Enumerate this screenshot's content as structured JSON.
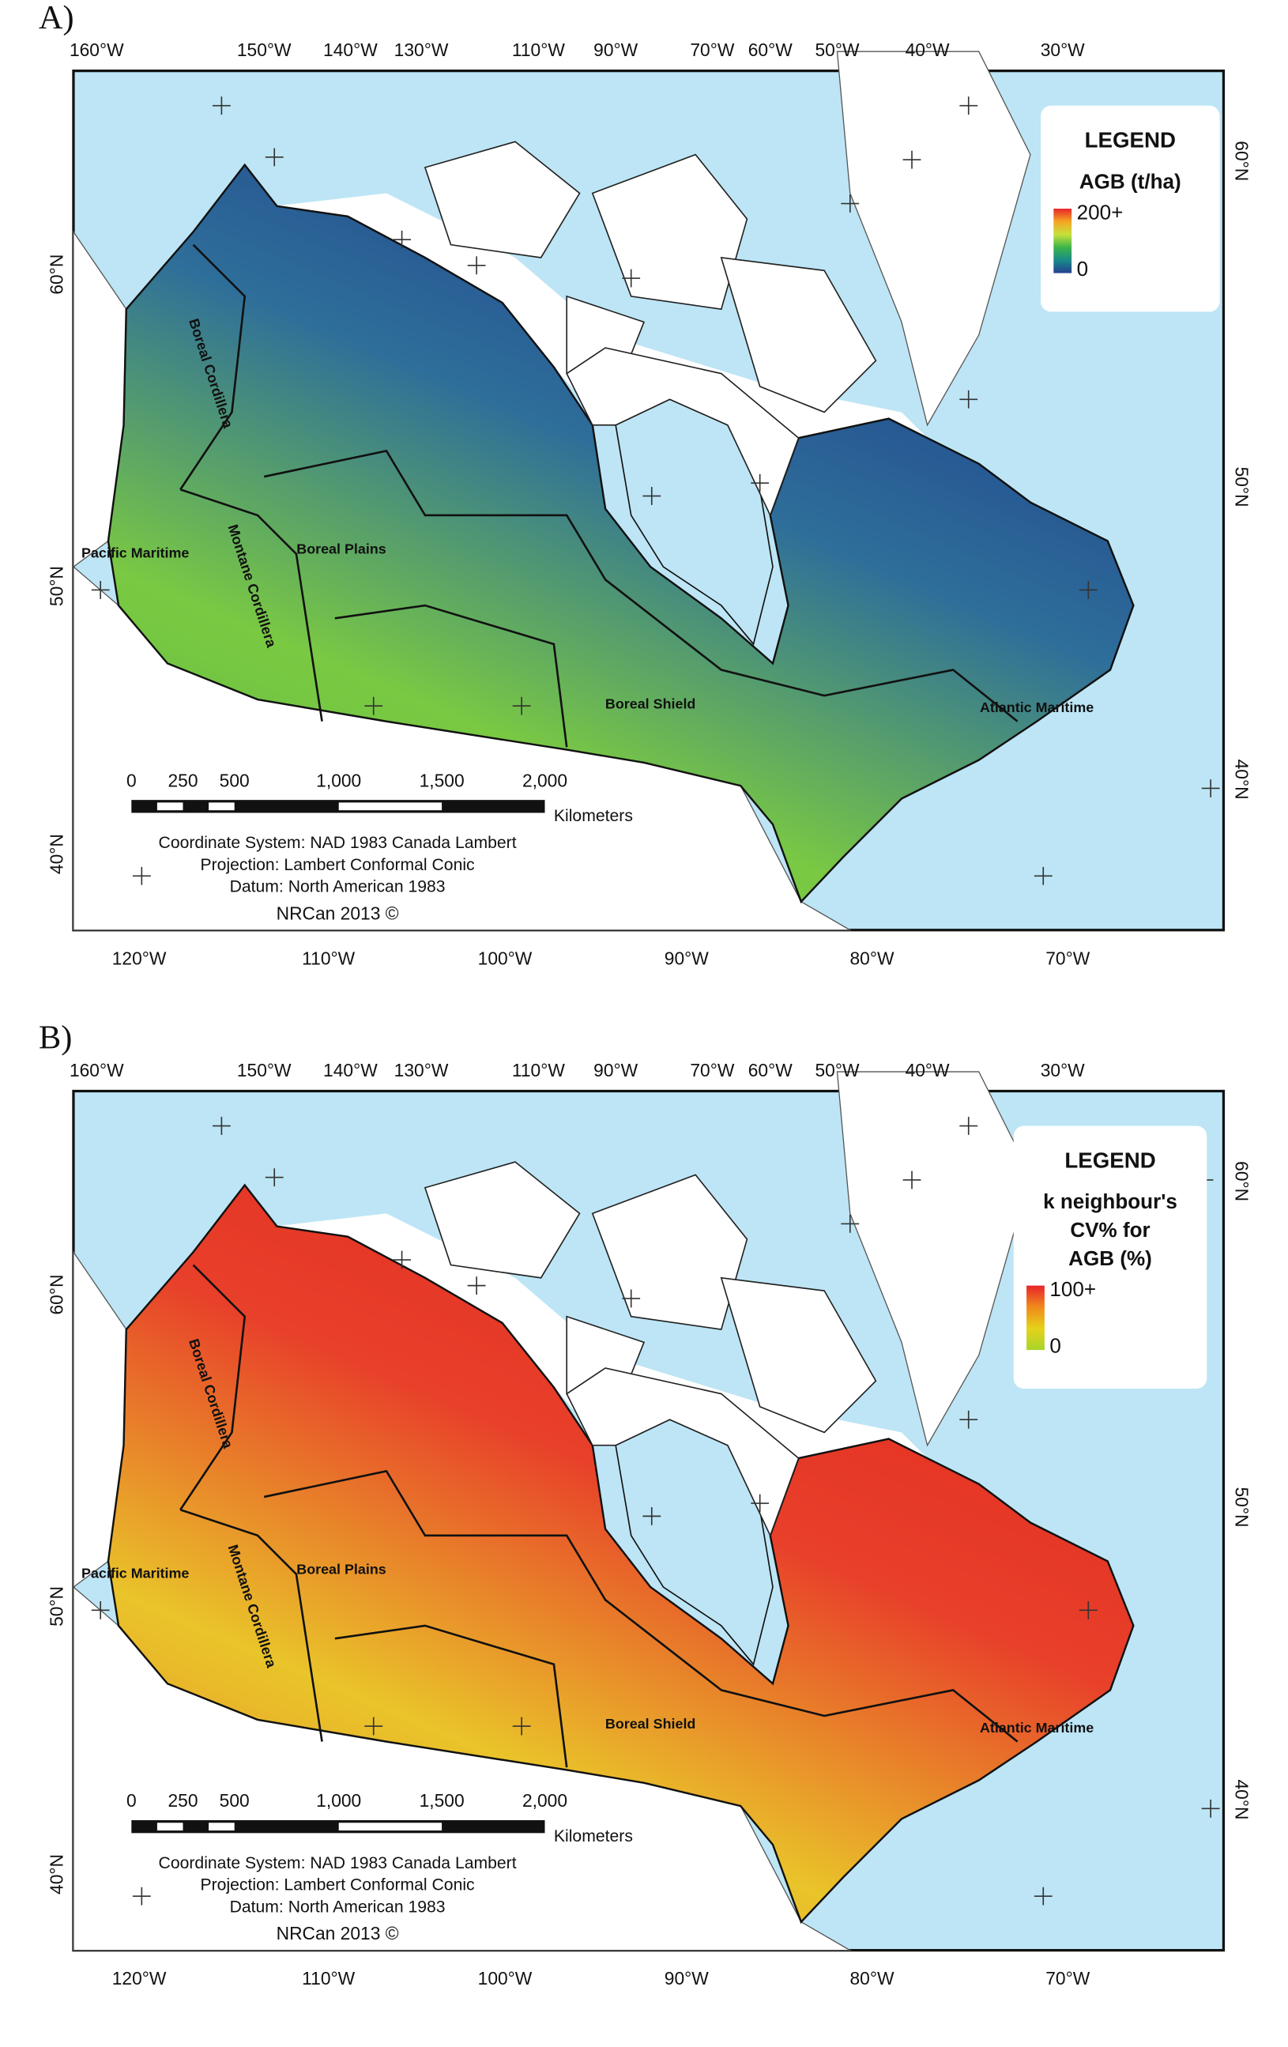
{
  "panels": [
    {
      "label": "A)",
      "top_longitudes": [
        "160°W",
        "150°W",
        "140°W",
        "130°W",
        "110°W",
        "90°W",
        "70°W",
        "60°W",
        "50°W",
        "40°W",
        "30°W"
      ],
      "bottom_longitudes": [
        "120°W",
        "110°W",
        "100°W",
        "90°W",
        "80°W",
        "70°W"
      ],
      "left_latitudes": [
        "60°N",
        "50°N",
        "40°N"
      ],
      "right_latitudes": [
        "60°N",
        "50°N",
        "40°N"
      ],
      "legend": {
        "title": "LEGEND",
        "subtitle": [
          "AGB (t/ha)"
        ],
        "max": "200+",
        "min": "0",
        "colors": [
          "#e8242b",
          "#f5a623",
          "#c8e03c",
          "#3cb54a",
          "#1a8a8a",
          "#23408e"
        ]
      },
      "map_colors": [
        "#5cba3c",
        "#7ac943",
        "#2e6e9a",
        "#1f3f8a"
      ],
      "regions": [
        "Pacific Maritime",
        "Boreal Cordillera",
        "Montane Cordillera",
        "Boreal Plains",
        "Boreal Shield",
        "Atlantic Maritime"
      ],
      "scale_bar": {
        "ticks": [
          "0",
          "250",
          "500",
          "1,000",
          "1,500",
          "2,000"
        ],
        "unit": "Kilometers"
      },
      "map_info": [
        "Coordinate System: NAD 1983 Canada Lambert",
        "Projection: Lambert Conformal Conic",
        "Datum: North American 1983"
      ],
      "credit": "NRCan 2013 ©"
    },
    {
      "label": "B)",
      "top_longitudes": [
        "160°W",
        "150°W",
        "140°W",
        "130°W",
        "110°W",
        "90°W",
        "70°W",
        "60°W",
        "50°W",
        "40°W",
        "30°W"
      ],
      "bottom_longitudes": [
        "120°W",
        "110°W",
        "100°W",
        "90°W",
        "80°W",
        "70°W"
      ],
      "left_latitudes": [
        "60°N",
        "50°N",
        "40°N"
      ],
      "right_latitudes": [
        "60°N",
        "50°N",
        "40°N"
      ],
      "legend": {
        "title": "LEGEND",
        "subtitle": [
          "k neighbour's",
          "CV% for",
          "AGB (%)"
        ],
        "max": "100+",
        "min": "0",
        "colors": [
          "#e8242b",
          "#f08a1c",
          "#e6d21a",
          "#a8d42a"
        ]
      },
      "map_colors": [
        "#e8842a",
        "#e9c42a",
        "#e8402a",
        "#e22a22"
      ],
      "regions": [
        "Pacific Maritime",
        "Boreal Cordillera",
        "Montane Cordillera",
        "Boreal Plains",
        "Boreal Shield",
        "Atlantic Maritime"
      ],
      "scale_bar": {
        "ticks": [
          "0",
          "250",
          "500",
          "1,000",
          "1,500",
          "2,000"
        ],
        "unit": "Kilometers"
      },
      "map_info": [
        "Coordinate System: NAD 1983 Canada Lambert",
        "Projection: Lambert Conformal Conic",
        "Datum: North American 1983"
      ],
      "credit": "NRCan 2013 ©"
    }
  ]
}
